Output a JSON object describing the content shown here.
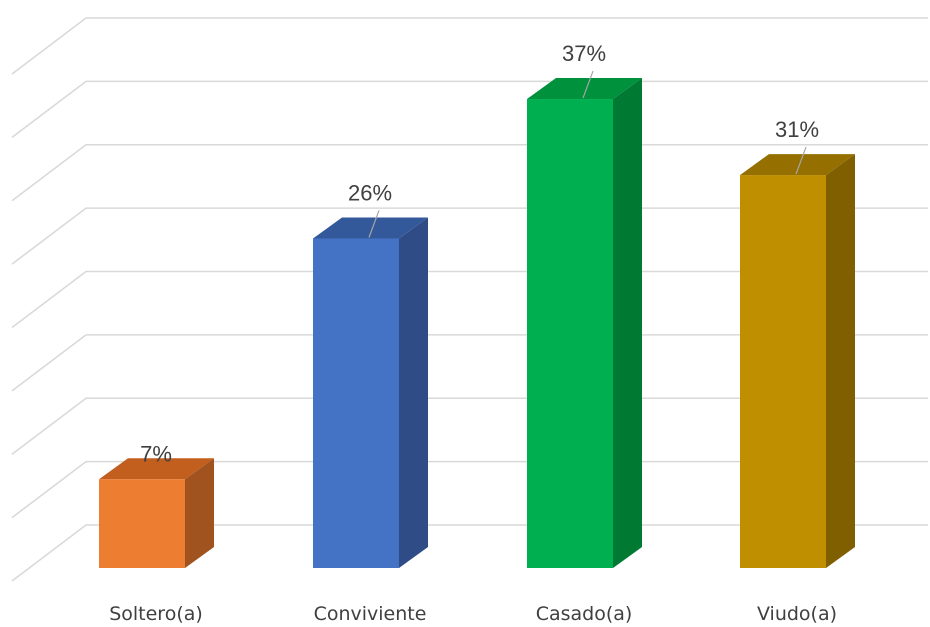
{
  "chart_data": {
    "type": "bar",
    "style": "3d-column",
    "categories": [
      "Soltero(a)",
      "Conviviente",
      "Casado(a)",
      "Viudo(a)"
    ],
    "values": [
      7,
      26,
      37,
      31
    ],
    "data_labels": [
      "7%",
      "26%",
      "37%",
      "31%"
    ],
    "colors": [
      "#ED7D31",
      "#4472C4",
      "#00B050",
      "#BF8F00"
    ],
    "side_colors": [
      "#A0521F",
      "#2F4C86",
      "#007A33",
      "#7F5F00"
    ],
    "top_colors": [
      "#C25E1E",
      "#34599B",
      "#00913D",
      "#957000"
    ],
    "ylim": [
      0,
      40
    ],
    "gridlines": 9,
    "grid": true,
    "legend": "none"
  }
}
